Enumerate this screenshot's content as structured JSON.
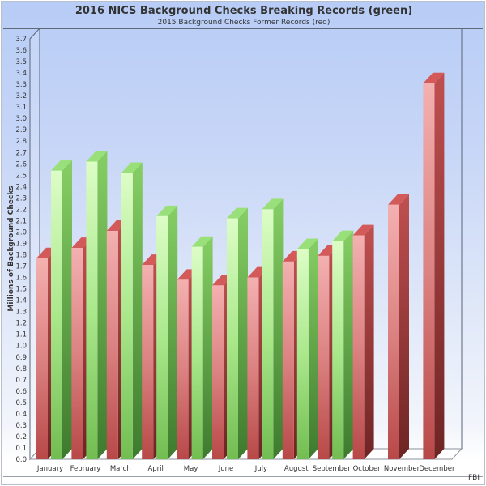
{
  "chart_data": {
    "type": "bar",
    "title": "2016 NICS Background Checks Breaking Records (green)",
    "subtitle": "2015 Background Checks Former Records (red)",
    "xlabel": "",
    "ylabel": "Millions of Background Checks",
    "ylim": [
      0.0,
      3.7
    ],
    "ytick_step": 0.1,
    "grid": false,
    "legend": "none (colors explained in title/subtitle)",
    "source": "FBI",
    "categories": [
      "January",
      "February",
      "March",
      "April",
      "May",
      "June",
      "July",
      "August",
      "September",
      "October",
      "November",
      "December"
    ],
    "series": [
      {
        "name": "2015 Background Checks Former Records (red)",
        "color": "#d46a6a",
        "values": [
          1.77,
          1.86,
          2.01,
          1.71,
          1.58,
          1.53,
          1.6,
          1.74,
          1.79,
          1.97,
          2.24,
          3.31
        ]
      },
      {
        "name": "2016 NICS Background Checks Breaking Records (green)",
        "color": "#8fd870",
        "values": [
          2.54,
          2.62,
          2.52,
          2.14,
          1.87,
          2.12,
          2.2,
          1.85,
          1.92,
          null,
          null,
          null
        ]
      }
    ]
  },
  "header": {
    "title": "2016 NICS Background Checks Breaking Records (green)",
    "subtitle": "2015 Background Checks Former Records (red)"
  },
  "axis": {
    "ylabel": "Millions of Background Checks",
    "yticks": [
      "0.0",
      "0.1",
      "0.2",
      "0.3",
      "0.4",
      "0.5",
      "0.6",
      "0.7",
      "0.8",
      "0.9",
      "1.0",
      "1.1",
      "1.2",
      "1.3",
      "1.4",
      "1.5",
      "1.6",
      "1.7",
      "1.8",
      "1.9",
      "2.0",
      "2.1",
      "2.2",
      "2.3",
      "2.4",
      "2.5",
      "2.6",
      "2.7",
      "2.8",
      "2.9",
      "3.0",
      "3.1",
      "3.2",
      "3.3",
      "3.4",
      "3.5",
      "3.6",
      "3.7"
    ]
  },
  "footer": {
    "source": "FBI"
  },
  "colors": {
    "red_front_light": "#f0a8a8",
    "red_front_dark": "#b84848",
    "red_side": "#8e3434",
    "red_top": "#d45a5a",
    "green_front_light": "#d8fcc0",
    "green_front_dark": "#7cc85c",
    "green_side": "#5ea548",
    "green_top": "#9ae07a",
    "frame": "#5a6478"
  }
}
